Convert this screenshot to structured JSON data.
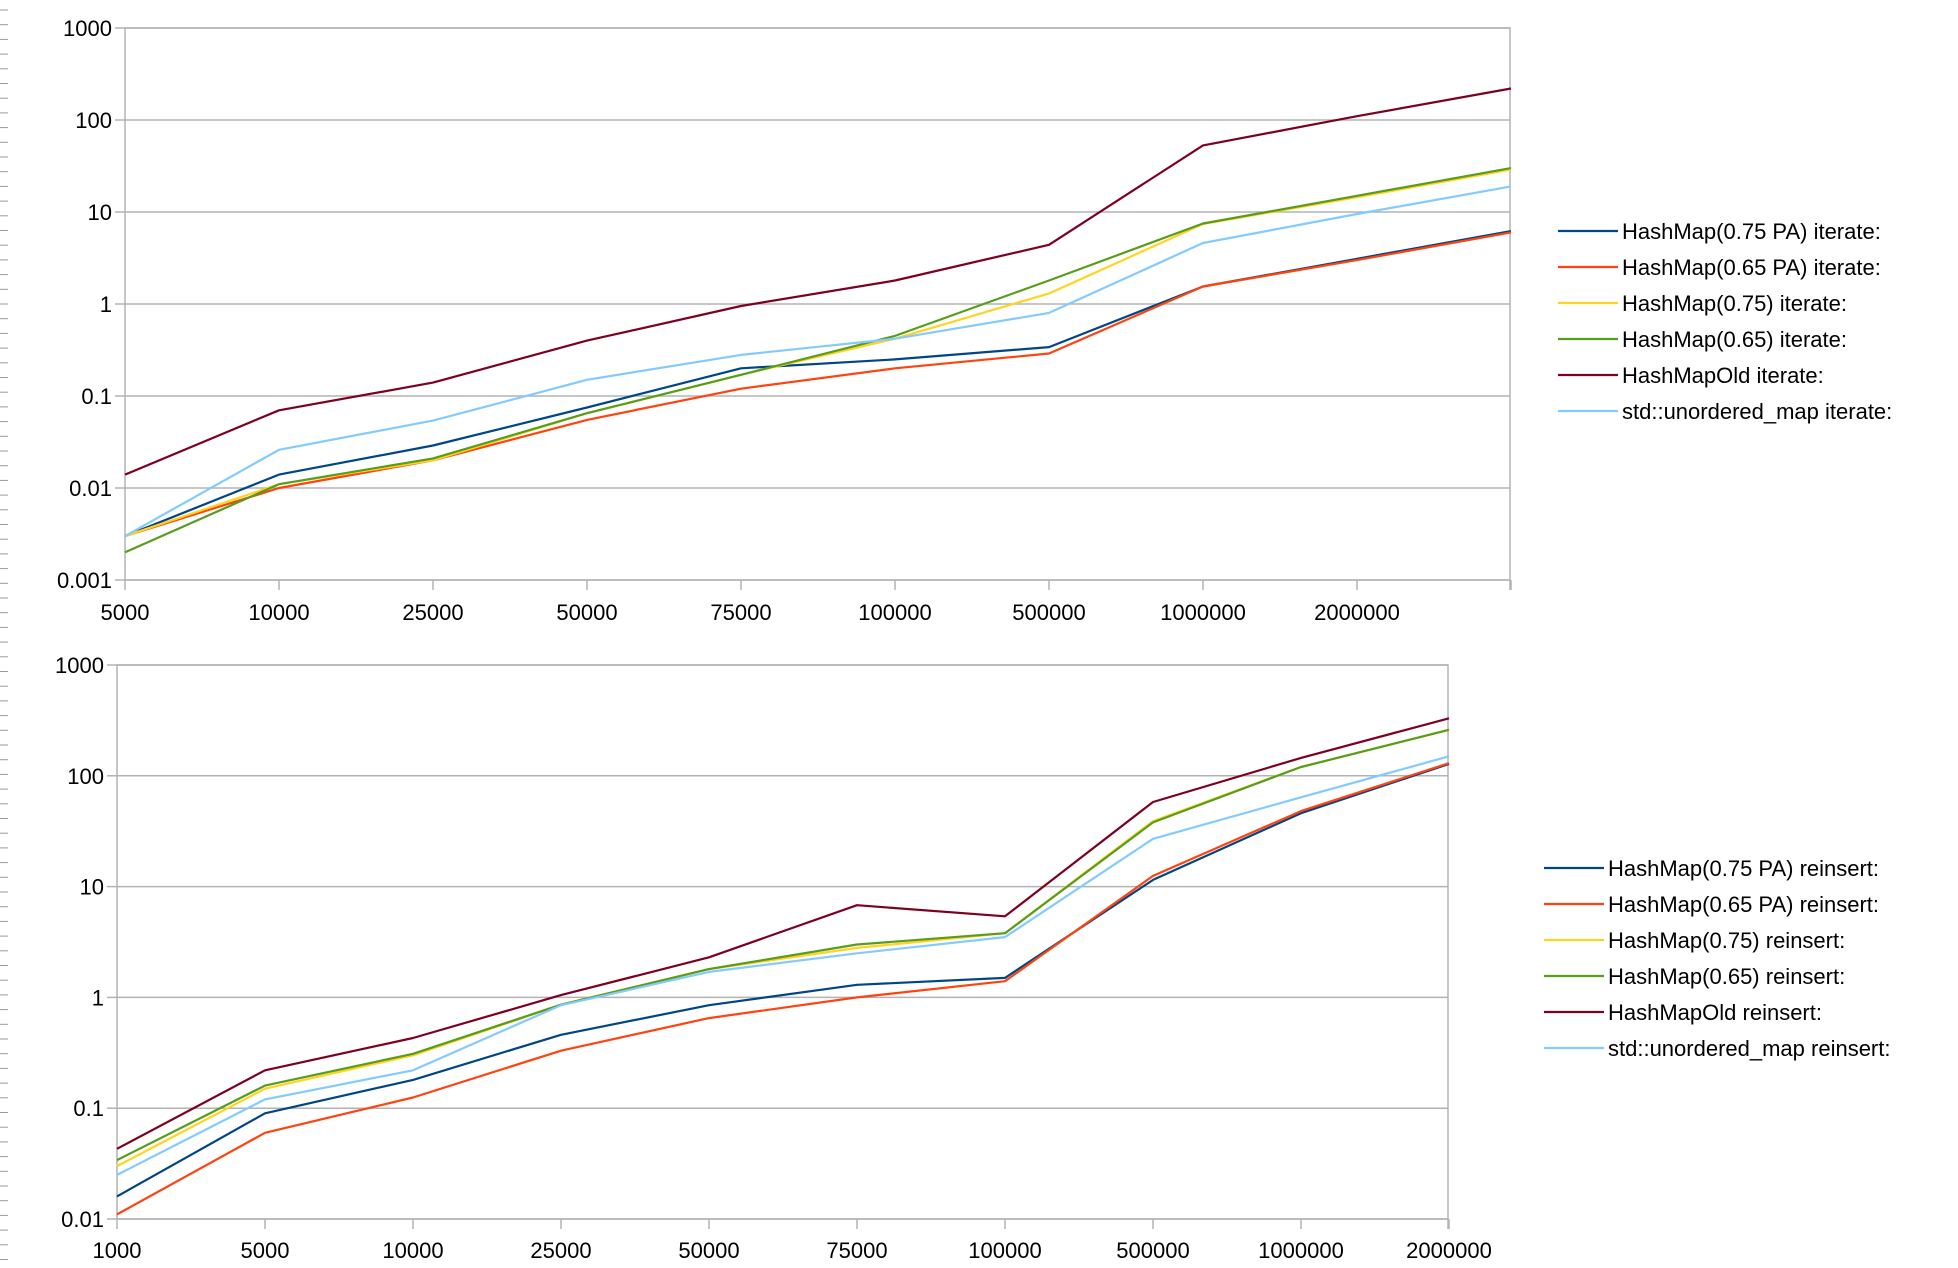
{
  "chart_data": [
    {
      "type": "line",
      "yscale": "log",
      "ylim": [
        0.001,
        1000
      ],
      "ytick_labels": [
        "1000",
        "100",
        "10",
        "1",
        "0.1",
        "0.01",
        "0.001"
      ],
      "ytick_values": [
        1000,
        100,
        10,
        1,
        0.1,
        0.01,
        0.001
      ],
      "categories": [
        "5000",
        "10000",
        "25000",
        "50000",
        "75000",
        "100000",
        "500000",
        "1000000",
        "2000000",
        ""
      ],
      "grid": true,
      "legend_position": "right",
      "series": [
        {
          "name": "HashMap(0.75 PA) iterate:",
          "color": "#004586",
          "values": [
            0.003,
            0.014,
            0.029,
            0.075,
            0.2,
            0.25,
            0.34,
            1.55,
            3.1,
            6.2
          ]
        },
        {
          "name": "HashMap(0.65 PA) iterate:",
          "color": "#ff420e",
          "values": [
            0.003,
            0.01,
            0.02,
            0.055,
            0.12,
            0.2,
            0.29,
            1.55,
            3.0,
            6.0
          ]
        },
        {
          "name": "HashMap(0.75) iterate:",
          "color": "#ffd320",
          "values": [
            0.003,
            0.011,
            0.02,
            0.065,
            0.17,
            0.42,
            1.3,
            7.4,
            14.5,
            29
          ]
        },
        {
          "name": "HashMap(0.65) iterate:",
          "color": "#579d1c",
          "values": [
            0.002,
            0.011,
            0.021,
            0.065,
            0.17,
            0.45,
            1.8,
            7.5,
            15,
            30
          ]
        },
        {
          "name": "HashMapOld iterate:",
          "color": "#7e0021",
          "values": [
            0.014,
            0.07,
            0.14,
            0.4,
            0.95,
            1.8,
            4.4,
            53,
            110,
            220
          ]
        },
        {
          "name": "std::unordered_map iterate:",
          "color": "#83caff",
          "values": [
            0.003,
            0.026,
            0.054,
            0.15,
            0.28,
            0.42,
            0.8,
            4.6,
            9.5,
            19
          ]
        }
      ]
    },
    {
      "type": "line",
      "yscale": "log",
      "ylim": [
        0.01,
        1000
      ],
      "ytick_labels": [
        "1000",
        "100",
        "10",
        "1",
        "0.1",
        "0.01"
      ],
      "ytick_values": [
        1000,
        100,
        10,
        1,
        0.1,
        0.01
      ],
      "categories": [
        "1000",
        "5000",
        "10000",
        "25000",
        "50000",
        "75000",
        "100000",
        "500000",
        "1000000",
        "2000000"
      ],
      "grid": true,
      "legend_position": "right",
      "series": [
        {
          "name": "HashMap(0.75 PA) reinsert:",
          "color": "#004586",
          "values": [
            0.016,
            0.09,
            0.18,
            0.46,
            0.85,
            1.3,
            1.5,
            11.5,
            46,
            128
          ]
        },
        {
          "name": "HashMap(0.65 PA) reinsert:",
          "color": "#ff420e",
          "values": [
            0.011,
            0.06,
            0.125,
            0.33,
            0.65,
            1.0,
            1.4,
            12.5,
            48,
            130
          ]
        },
        {
          "name": "HashMap(0.75) reinsert:",
          "color": "#ffd320",
          "values": [
            0.03,
            0.15,
            0.3,
            0.86,
            1.8,
            2.8,
            3.8,
            39,
            120,
            260
          ]
        },
        {
          "name": "HashMap(0.65) reinsert:",
          "color": "#579d1c",
          "values": [
            0.034,
            0.16,
            0.31,
            0.86,
            1.8,
            3.0,
            3.8,
            38,
            120,
            260
          ]
        },
        {
          "name": "HashMapOld reinsert:",
          "color": "#7e0021",
          "values": [
            0.043,
            0.22,
            0.43,
            1.05,
            2.3,
            6.8,
            5.4,
            58,
            145,
            330
          ]
        },
        {
          "name": "std::unordered_map reinsert:",
          "color": "#83caff",
          "values": [
            0.025,
            0.12,
            0.22,
            0.85,
            1.7,
            2.5,
            3.5,
            27,
            64,
            150
          ]
        }
      ]
    }
  ]
}
